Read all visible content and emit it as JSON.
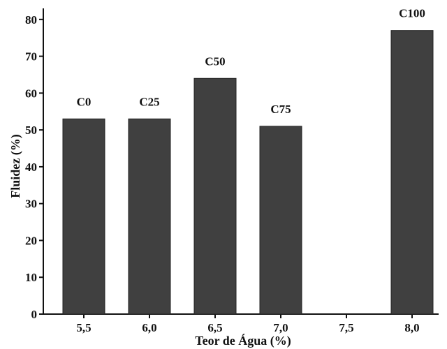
{
  "chart_data": {
    "type": "bar",
    "title": "",
    "xlabel": "Teor de Água (%)",
    "ylabel": "Fluidez (%)",
    "categories": [
      "5,5",
      "6,0",
      "6,5",
      "7,0",
      "7,5",
      "8,0"
    ],
    "values": [
      53,
      53,
      64,
      51,
      null,
      77
    ],
    "bar_labels": [
      "C0",
      "C25",
      "C50",
      "C75",
      "",
      "C100"
    ],
    "ylim": [
      0,
      83
    ],
    "yticks": [
      0,
      10,
      20,
      30,
      40,
      50,
      60,
      70,
      80
    ],
    "grid": false,
    "legend": "none",
    "bar_color": "#404040"
  }
}
